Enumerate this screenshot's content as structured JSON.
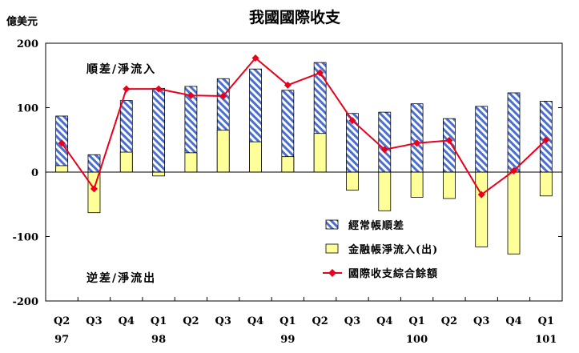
{
  "chart_data": {
    "type": "bar",
    "title": "我國國際收支",
    "unit_label": "億美元",
    "ylim": [
      -200,
      200
    ],
    "yticks": [
      -200,
      -100,
      0,
      100,
      200
    ],
    "grid": false,
    "legend_position": "bottom-right",
    "annotations": {
      "surplus": "順差/淨流入",
      "deficit": "逆差/淨流出"
    },
    "categories": [
      {
        "quarter": "Q2",
        "year": "97"
      },
      {
        "quarter": "Q3",
        "year": ""
      },
      {
        "quarter": "Q4",
        "year": ""
      },
      {
        "quarter": "Q1",
        "year": "98"
      },
      {
        "quarter": "Q2",
        "year": ""
      },
      {
        "quarter": "Q3",
        "year": ""
      },
      {
        "quarter": "Q4",
        "year": ""
      },
      {
        "quarter": "Q1",
        "year": "99"
      },
      {
        "quarter": "Q2",
        "year": ""
      },
      {
        "quarter": "Q3",
        "year": ""
      },
      {
        "quarter": "Q4",
        "year": ""
      },
      {
        "quarter": "Q1",
        "year": "100"
      },
      {
        "quarter": "Q2",
        "year": ""
      },
      {
        "quarter": "Q3",
        "year": ""
      },
      {
        "quarter": "Q4",
        "year": ""
      },
      {
        "quarter": "Q1",
        "year": "101"
      }
    ],
    "series": [
      {
        "name": "經常帳順差",
        "kind": "bar-hatched",
        "color": "#4a6fd0",
        "values": [
          87,
          27,
          111,
          130,
          133,
          145,
          160,
          127,
          170,
          91,
          93,
          106,
          83,
          102,
          123,
          110
        ]
      },
      {
        "name": "金融帳淨流入(出)",
        "kind": "bar",
        "color": "#ffff99",
        "values": [
          10,
          -63,
          31,
          -6,
          30,
          65,
          47,
          24,
          60,
          -28,
          -60,
          -39,
          -41,
          -116,
          -127,
          -37
        ]
      },
      {
        "name": "國際收支綜合餘額",
        "kind": "line",
        "color": "#e8001c",
        "values": [
          45,
          -26,
          129,
          129,
          119,
          118,
          177,
          135,
          154,
          80,
          35,
          45,
          49,
          -35,
          2,
          50
        ]
      }
    ]
  }
}
